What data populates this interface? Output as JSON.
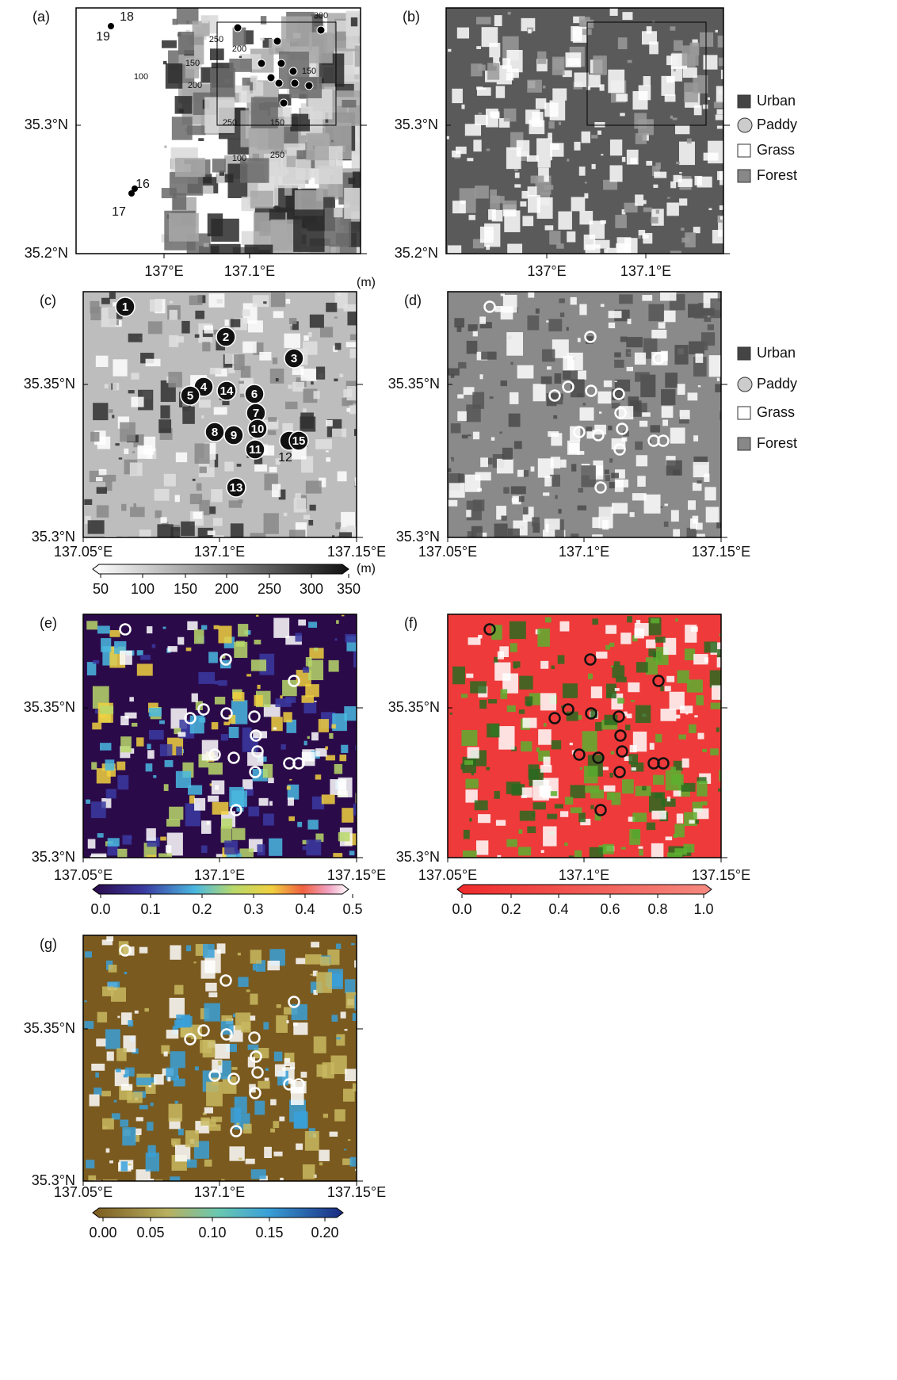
{
  "panels": [
    {
      "label": "(a)",
      "lat_labels": [
        "35.3°N",
        "35.2°N"
      ],
      "lon_labels": [
        "137°E",
        "137.1°E"
      ],
      "station_labels": [
        "18",
        "19",
        "16",
        "17"
      ],
      "contour_labels": [
        "100",
        "150",
        "200",
        "250",
        "250",
        "300",
        "150",
        "200",
        "150",
        "250",
        "100"
      ]
    },
    {
      "label": "(b)",
      "lat_labels": [
        "35.3°N",
        "35.2°N"
      ],
      "lon_labels": [
        "137°E",
        "137.1°E"
      ],
      "legend": [
        "Urban",
        "Paddy",
        "Grass",
        "Forest"
      ]
    },
    {
      "label": "(c)",
      "lat_labels": [
        "35.35°N",
        "35.3°N"
      ],
      "lon_labels": [
        "137.05°E",
        "137.1°E",
        "137.15°E"
      ],
      "unit": "(m)",
      "station_labels": [
        "1",
        "2",
        "3",
        "4",
        "5",
        "6",
        "7",
        "8",
        "9",
        "10",
        "11",
        "12",
        "13",
        "14",
        "15"
      ],
      "colorbar": {
        "unit": "(m)",
        "ticks": [
          "50",
          "100",
          "150",
          "200",
          "250",
          "300",
          "350"
        ]
      }
    },
    {
      "label": "(d)",
      "lat_labels": [
        "35.35°N",
        "35.3°N"
      ],
      "lon_labels": [
        "137.05°E",
        "137.1°E",
        "137.15°E"
      ],
      "legend": [
        "Urban",
        "Paddy",
        "Grass",
        "Forest"
      ]
    },
    {
      "label": "(e)",
      "lat_labels": [
        "35.35°N",
        "35.3°N"
      ],
      "lon_labels": [
        "137.05°E",
        "137.1°E",
        "137.15°E"
      ],
      "colorbar": {
        "ticks": [
          "0.0",
          "0.1",
          "0.2",
          "0.3",
          "0.4",
          "0.5"
        ]
      }
    },
    {
      "label": "(f)",
      "lat_labels": [
        "35.35°N",
        "35.3°N"
      ],
      "lon_labels": [
        "137.05°E",
        "137.1°E",
        "137.15°E"
      ],
      "colorbar": {
        "ticks": [
          "0.0",
          "0.2",
          "0.4",
          "0.6",
          "0.8",
          "1.0"
        ]
      }
    },
    {
      "label": "(g)",
      "lat_labels": [
        "35.35°N",
        "35.3°N"
      ],
      "lon_labels": [
        "137.05°E",
        "137.1°E",
        "137.15°E"
      ],
      "colorbar": {
        "ticks": [
          "0.00",
          "0.05",
          "0.10",
          "0.15",
          "0.20"
        ]
      }
    }
  ]
}
